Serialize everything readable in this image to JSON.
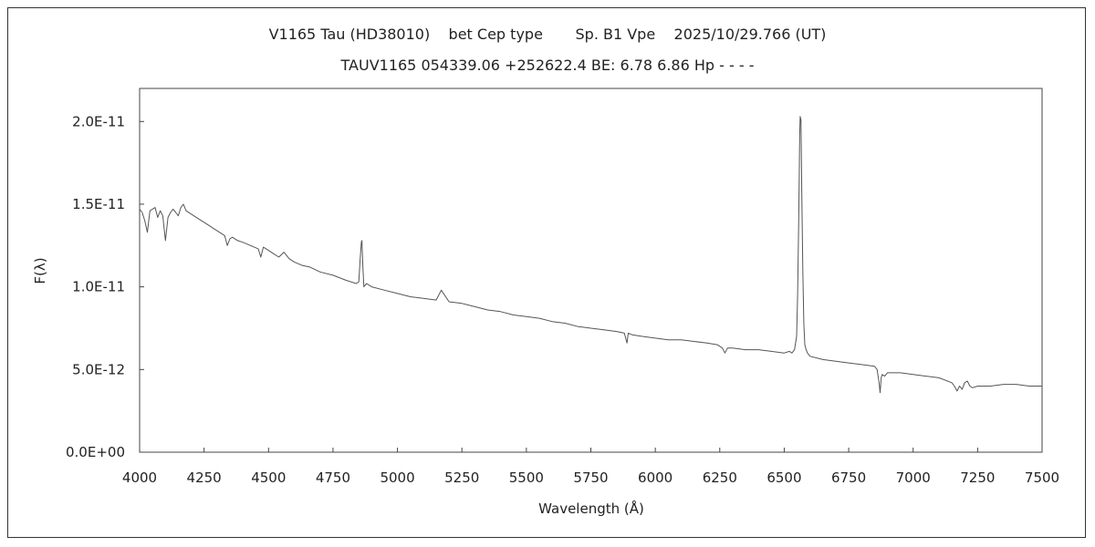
{
  "chart_data": {
    "type": "line",
    "title": "V1165 Tau (HD38010)    bet Cep type       Sp. B1 Vpe    2025/10/29.766 (UT)",
    "subtitle": "TAUV1165 054339.06 +252622.4 BE: 6.78 6.86 Hp - - - -",
    "xlabel": "Wavelength (Å)",
    "ylabel": "F(λ)",
    "xlim": [
      4000,
      7500
    ],
    "ylim": [
      0,
      2.2e-11
    ],
    "xticks": [
      4000,
      4250,
      4500,
      4750,
      5000,
      5250,
      5500,
      5750,
      6000,
      6250,
      6500,
      6750,
      7000,
      7250,
      7500
    ],
    "yticks": [
      0,
      5e-12,
      1e-11,
      1.5e-11,
      2e-11
    ],
    "ytick_labels": [
      "0.0E+00",
      "5.0E-12",
      "1.0E-11",
      "1.5E-11",
      "2.0E-11"
    ],
    "grid": false,
    "series": [
      {
        "color": "#555555",
        "x": [
          4000,
          4010,
          4020,
          4030,
          4040,
          4050,
          4060,
          4070,
          4080,
          4090,
          4100,
          4110,
          4120,
          4130,
          4140,
          4150,
          4160,
          4170,
          4180,
          4200,
          4230,
          4260,
          4290,
          4310,
          4330,
          4340,
          4350,
          4360,
          4380,
          4400,
          4430,
          4460,
          4470,
          4480,
          4500,
          4520,
          4540,
          4560,
          4580,
          4600,
          4630,
          4660,
          4700,
          4750,
          4800,
          4840,
          4850,
          4855,
          4860,
          4862,
          4866,
          4870,
          4880,
          4900,
          4950,
          5000,
          5050,
          5100,
          5150,
          5170,
          5200,
          5250,
          5300,
          5350,
          5400,
          5450,
          5500,
          5550,
          5600,
          5650,
          5700,
          5750,
          5800,
          5850,
          5880,
          5890,
          5895,
          5910,
          5950,
          6000,
          6050,
          6100,
          6150,
          6200,
          6240,
          6260,
          6270,
          6280,
          6300,
          6350,
          6400,
          6450,
          6500,
          6520,
          6530,
          6540,
          6548,
          6552,
          6556,
          6560,
          6562,
          6565,
          6568,
          6572,
          6576,
          6580,
          6585,
          6590,
          6600,
          6650,
          6700,
          6750,
          6800,
          6850,
          6860,
          6868,
          6872,
          6876,
          6880,
          6890,
          6900,
          6950,
          7000,
          7050,
          7100,
          7150,
          7160,
          7170,
          7180,
          7190,
          7200,
          7210,
          7220,
          7230,
          7250,
          7300,
          7350,
          7400,
          7450,
          7500
        ],
        "y": [
          1.47e-11,
          1.45e-11,
          1.4e-11,
          1.33e-11,
          1.46e-11,
          1.47e-11,
          1.48e-11,
          1.42e-11,
          1.46e-11,
          1.43e-11,
          1.28e-11,
          1.42e-11,
          1.45e-11,
          1.47e-11,
          1.45e-11,
          1.43e-11,
          1.48e-11,
          1.5e-11,
          1.46e-11,
          1.44e-11,
          1.41e-11,
          1.38e-11,
          1.35e-11,
          1.33e-11,
          1.31e-11,
          1.25e-11,
          1.29e-11,
          1.3e-11,
          1.28e-11,
          1.27e-11,
          1.25e-11,
          1.23e-11,
          1.18e-11,
          1.24e-11,
          1.22e-11,
          1.2e-11,
          1.18e-11,
          1.21e-11,
          1.17e-11,
          1.15e-11,
          1.13e-11,
          1.12e-11,
          1.09e-11,
          1.07e-11,
          1.04e-11,
          1.02e-11,
          1.03e-11,
          1.16e-11,
          1.27e-11,
          1.28e-11,
          1.12e-11,
          1e-11,
          1.02e-11,
          1e-11,
          9.8e-12,
          9.6e-12,
          9.4e-12,
          9.3e-12,
          9.2e-12,
          9.8e-12,
          9.1e-12,
          9e-12,
          8.8e-12,
          8.6e-12,
          8.5e-12,
          8.3e-12,
          8.2e-12,
          8.1e-12,
          7.9e-12,
          7.8e-12,
          7.6e-12,
          7.5e-12,
          7.4e-12,
          7.3e-12,
          7.2e-12,
          6.6e-12,
          7.2e-12,
          7.1e-12,
          7e-12,
          6.9e-12,
          6.8e-12,
          6.8e-12,
          6.7e-12,
          6.6e-12,
          6.5e-12,
          6.3e-12,
          6e-12,
          6.3e-12,
          6.3e-12,
          6.2e-12,
          6.2e-12,
          6.1e-12,
          6e-12,
          6.1e-12,
          6e-12,
          6.2e-12,
          7e-12,
          9.5e-12,
          1.4e-11,
          1.92e-11,
          2.03e-11,
          2.01e-11,
          1.6e-11,
          1.1e-11,
          7.8e-12,
          6.5e-12,
          6.2e-12,
          6e-12,
          5.8e-12,
          5.6e-12,
          5.5e-12,
          5.4e-12,
          5.3e-12,
          5.2e-12,
          5e-12,
          4.2e-12,
          3.6e-12,
          4.5e-12,
          4.7e-12,
          4.6e-12,
          4.8e-12,
          4.8e-12,
          4.7e-12,
          4.6e-12,
          4.5e-12,
          4.2e-12,
          4e-12,
          3.7e-12,
          4e-12,
          3.8e-12,
          4.2e-12,
          4.3e-12,
          4e-12,
          3.9e-12,
          4e-12,
          4e-12,
          4.1e-12,
          4.1e-12,
          4e-12,
          4e-12
        ]
      }
    ]
  }
}
